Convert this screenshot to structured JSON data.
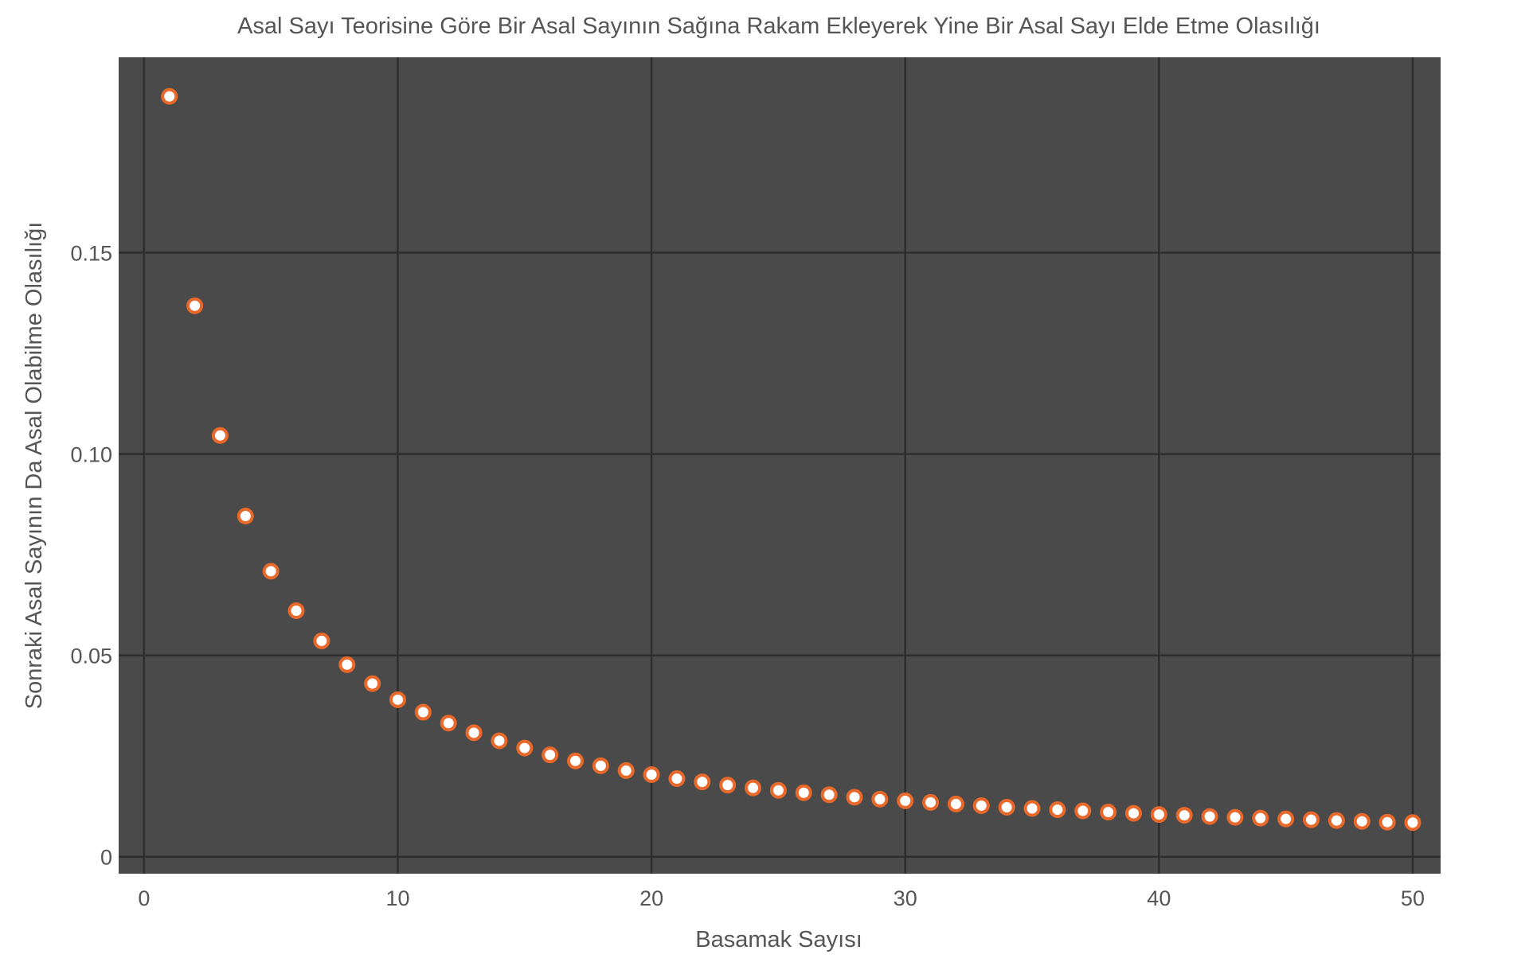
{
  "chart_data": {
    "type": "scatter",
    "title": "Asal Sayı Teorisine Göre Bir Asal Sayının Sağına Rakam Ekleyerek Yine Bir Asal Sayı Elde Etme Olasılığı",
    "xlabel": "Basamak Sayısı",
    "ylabel": "Sonraki Asal Sayının Da Asal Olabilme Olasılığı",
    "xlim": [
      -1,
      51.1
    ],
    "ylim": [
      -0.0042,
      0.1985
    ],
    "x_ticks": [
      0,
      10,
      20,
      30,
      40,
      50
    ],
    "x_tick_labels": [
      "0",
      "10",
      "20",
      "30",
      "40",
      "50"
    ],
    "y_ticks": [
      0,
      0.05,
      0.1,
      0.15
    ],
    "y_tick_labels": [
      "0",
      "0.05",
      "0.10",
      "0.15"
    ],
    "grid": true,
    "colors": {
      "plot_background": "#4a4a4a",
      "grid": "#2e2e2e",
      "marker_fill": "#ffffff",
      "marker_edge": "#e8692a"
    },
    "series": [
      {
        "x": [
          1,
          2,
          3,
          4,
          5,
          6,
          7,
          8,
          9,
          10,
          11,
          12,
          13,
          14,
          15,
          16,
          17,
          18,
          19,
          20,
          21,
          22,
          23,
          24,
          25,
          26,
          27,
          28,
          29,
          30,
          31,
          32,
          33,
          34,
          35,
          36,
          37,
          38,
          39,
          40,
          41,
          42,
          43,
          44,
          45,
          46,
          47,
          48,
          49,
          50
        ],
        "values": [
          0.1888,
          0.1368,
          0.1046,
          0.0846,
          0.0709,
          0.0611,
          0.0536,
          0.0477,
          0.043,
          0.039,
          0.0359,
          0.0332,
          0.0308,
          0.0288,
          0.027,
          0.0253,
          0.0238,
          0.0226,
          0.0214,
          0.0204,
          0.0194,
          0.0186,
          0.0178,
          0.0171,
          0.0165,
          0.0159,
          0.0154,
          0.0148,
          0.0143,
          0.0139,
          0.0135,
          0.0131,
          0.0127,
          0.0123,
          0.012,
          0.0117,
          0.0114,
          0.0111,
          0.0108,
          0.0105,
          0.0103,
          0.01,
          0.0098,
          0.0096,
          0.0094,
          0.0092,
          0.009,
          0.0088,
          0.0086,
          0.0085
        ]
      }
    ]
  }
}
